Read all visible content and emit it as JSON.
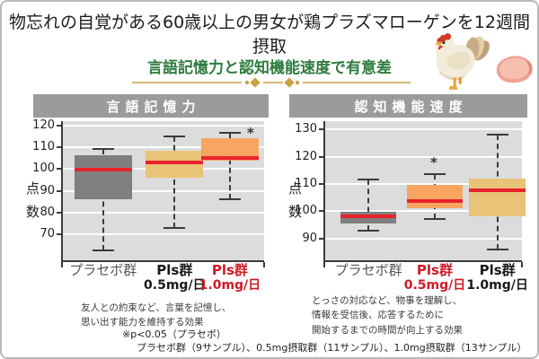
{
  "page": {
    "title": "物忘れの自覚がある60歳以上の男女が鶏プラズマローゲンを12週間摂取",
    "subtitle": "言語記憶力と認知機能速度で有意差",
    "footnote_line1": "※p<0.05（プラセボ）",
    "footnote_line2": "プラセボ群（9サンプル）、0.5mg摂取群（11サンプル）、1.0mg摂取群（13サンプル）"
  },
  "icons": {
    "chicken": "chicken-icon",
    "chicken_breast": "chicken-breast-icon"
  },
  "colors": {
    "banner_gray": "#9b9b9b",
    "plot_background": "#dcdcdc",
    "gridline": "#ffffff",
    "axis": "#3b3b3b",
    "box_gray": "#7f7f7f",
    "box_tan": "#e9c377",
    "box_orange": "#f7a561",
    "median_red": "#e8232d",
    "highlight_red": "#cf1b26",
    "subtitle_green": "#2d7b3e",
    "divider_gold": "#c9a143"
  },
  "chart_data": [
    {
      "type": "box",
      "title": "言語記憶力",
      "ylabel": "点\n数",
      "ylim": [
        58,
        122
      ],
      "yticks": [
        120,
        110,
        100,
        90,
        80,
        70
      ],
      "grid": true,
      "categories": [
        {
          "line1": "プラセボ群",
          "line2": "",
          "color": "#555555",
          "bold": false
        },
        {
          "line1": "Pls群",
          "line2": "0.5mg/日",
          "color": "#1a1a1a",
          "bold": true
        },
        {
          "line1": "Pls群",
          "line2": "1.0mg/日",
          "color": "#cf1b26",
          "bold": true
        }
      ],
      "centers": [
        0.2,
        0.555,
        0.83
      ],
      "boxes": [
        {
          "low": 62.5,
          "q1": 86,
          "median": 99.5,
          "q3": 106.5,
          "high": 109,
          "fill": "#7f7f7f",
          "annotation": "",
          "annotation_placement": ""
        },
        {
          "low": 73,
          "q1": 96,
          "median": 103,
          "q3": 108.5,
          "high": 115,
          "fill": "#e9c377",
          "annotation": "",
          "annotation_placement": ""
        },
        {
          "low": 86,
          "q1": 104,
          "median": 105,
          "q3": 114,
          "high": 116.5,
          "fill": "#f7a561",
          "annotation": "*",
          "annotation_placement": "right"
        }
      ],
      "note": "友人との約束など、言葉を記憶し、\n思い出す能力を維持する効果"
    },
    {
      "type": "box",
      "title": "認知機能速度",
      "ylabel": "点\n数",
      "ylim": [
        82,
        133
      ],
      "yticks": [
        130,
        120,
        110,
        100,
        90
      ],
      "grid": true,
      "categories": [
        {
          "line1": "プラセボ群",
          "line2": "",
          "color": "#555555",
          "bold": false
        },
        {
          "line1": "Pls群",
          "line2": "0.5mg/日",
          "color": "#cf1b26",
          "bold": true
        },
        {
          "line1": "Pls群",
          "line2": "1.0mg/日",
          "color": "#1a1a1a",
          "bold": true
        }
      ],
      "centers": [
        0.22,
        0.557,
        0.875
      ],
      "boxes": [
        {
          "low": 93,
          "q1": 95.5,
          "median": 98,
          "q3": 99.8,
          "high": 111.5,
          "fill": "#7f7f7f",
          "annotation": "",
          "annotation_placement": ""
        },
        {
          "low": 97,
          "q1": 101,
          "median": 103.8,
          "q3": 109.5,
          "high": 113.7,
          "fill": "#f7a561",
          "annotation": "*",
          "annotation_placement": "above"
        },
        {
          "low": 86,
          "q1": 98,
          "median": 107.8,
          "q3": 112,
          "high": 128,
          "fill": "#e9c377",
          "annotation": "",
          "annotation_placement": ""
        }
      ],
      "note": "とっさの対応など、物事を理解し、\n情報を受信後、応答するために\n開始するまでの時間が向上する効果"
    }
  ]
}
